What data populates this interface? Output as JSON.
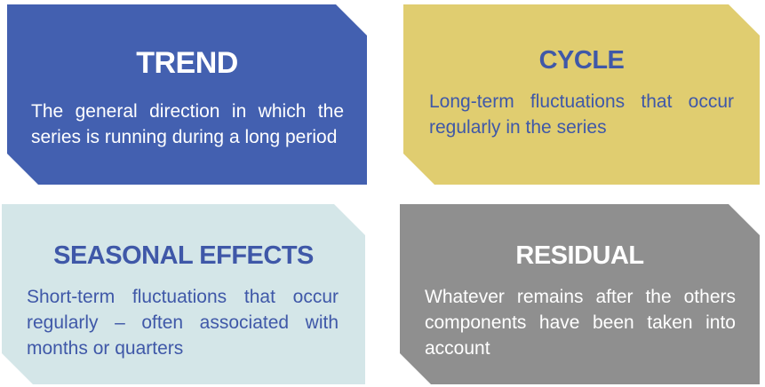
{
  "cards": [
    {
      "id": "trend",
      "title": "TREND",
      "description": "The general direction in which the series is running during a long period",
      "background": "#4360b0",
      "title_color": "#ffffff",
      "text_color": "#ffffff"
    },
    {
      "id": "cycle",
      "title": "CYCLE",
      "description": "Long-term fluctuations that occur regularly in the series",
      "background": "#e0cd70",
      "title_color": "#3f58a8",
      "text_color": "#3f58a8"
    },
    {
      "id": "seasonal",
      "title": "SEASONAL EFFECTS",
      "description": "Short-term fluctuations that occur regularly – often associated with months or quarters",
      "background": "#d4e6e8",
      "title_color": "#3f58a8",
      "text_color": "#3f58a8"
    },
    {
      "id": "residual",
      "title": "RESIDUAL",
      "description": "Whatever remains after the others components have been taken into account",
      "background": "#8f8f8f",
      "title_color": "#ffffff",
      "text_color": "#ffffff"
    }
  ]
}
